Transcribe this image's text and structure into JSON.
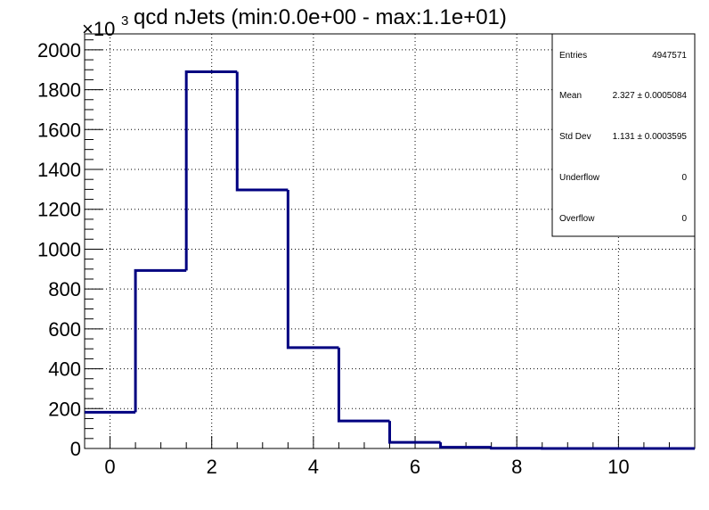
{
  "chart_data": {
    "type": "bar",
    "style": "step-histogram",
    "title": "qcd nJets (min:0.0e+00 - max:1.1e+01)",
    "y_multiplier": {
      "base": "×10",
      "exponent": "3"
    },
    "bin_edges": [
      -0.5,
      0.5,
      1.5,
      2.5,
      3.5,
      4.5,
      5.5,
      6.5,
      7.5,
      8.5,
      9.5,
      10.5,
      11.5
    ],
    "categories": [
      "0",
      "1",
      "2",
      "3",
      "4",
      "5",
      "6",
      "7",
      "8",
      "9",
      "10",
      "11"
    ],
    "values": [
      182,
      893,
      1890,
      1297,
      506,
      138,
      31,
      6,
      1,
      0,
      0,
      0
    ],
    "xlim": [
      -0.5,
      11.5
    ],
    "ylim": [
      0,
      2080
    ],
    "x_ticks": [
      0,
      2,
      4,
      6,
      8,
      10
    ],
    "x_tick_labels": [
      "0",
      "2",
      "4",
      "6",
      "8",
      "10"
    ],
    "y_ticks": [
      0,
      200,
      400,
      600,
      800,
      1000,
      1200,
      1400,
      1600,
      1800,
      2000
    ],
    "y_tick_labels": [
      "0",
      "200",
      "400",
      "600",
      "800",
      "1000",
      "1200",
      "1400",
      "1600",
      "1800",
      "2000"
    ],
    "grid": true,
    "line_color": "#000080",
    "stats_box": {
      "placement": "top-right",
      "rows": [
        {
          "label": "Entries",
          "value": "4947571"
        },
        {
          "label": "Mean",
          "value": "2.327 ± 0.0005084"
        },
        {
          "label": "Std Dev",
          "value": "1.131 ± 0.0003595"
        },
        {
          "label": "Underflow",
          "value": "0"
        },
        {
          "label": "Overflow",
          "value": "0"
        }
      ]
    }
  }
}
